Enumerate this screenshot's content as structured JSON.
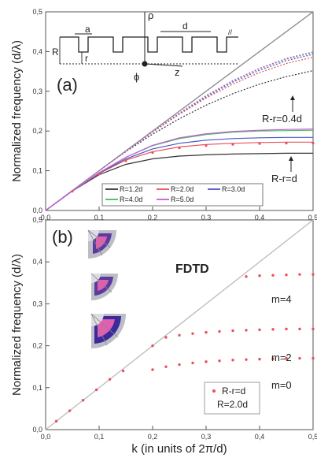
{
  "chart_data": [
    {
      "panel": "(a)",
      "type": "line",
      "ylabel": "Normalized frequency (d/λ)",
      "xlabel": "",
      "xlim": [
        0,
        0.5
      ],
      "ylim": [
        0,
        0.5
      ],
      "xticks": [
        "0,0",
        "0,1",
        "0,2",
        "0,3",
        "0,4",
        "0,5"
      ],
      "yticks": [
        "0,0",
        "0,1",
        "0,2",
        "0,3",
        "0,4",
        "0,5"
      ],
      "legend_position": "bottom-right",
      "annotations": [
        "R-r=0.4d",
        "R-r=d"
      ],
      "inset_labels": {
        "R": "R",
        "a": "a",
        "d": "d",
        "r": "r",
        "rho": "ρ",
        "phi": "ϕ",
        "z": "z"
      },
      "series": [
        {
          "name": "R=1.2d",
          "color": "#333333",
          "x": [
            0,
            0.05,
            0.1,
            0.15,
            0.2,
            0.25,
            0.3,
            0.35,
            0.4,
            0.45,
            0.5
          ],
          "y_group_lower": [
            0,
            0.049,
            0.09,
            0.116,
            0.13,
            0.137,
            0.14,
            0.142,
            0.143,
            0.144,
            0.144
          ],
          "y_group_upper": [
            0,
            0.05,
            0.1,
            0.148,
            0.192,
            0.231,
            0.265,
            0.294,
            0.318,
            0.337,
            0.352
          ]
        },
        {
          "name": "R=2.0d",
          "color": "#e8505a",
          "x": [
            0,
            0.05,
            0.1,
            0.15,
            0.2,
            0.25,
            0.3,
            0.35,
            0.4,
            0.45,
            0.5
          ],
          "y_group_lower": [
            0,
            0.049,
            0.093,
            0.127,
            0.148,
            0.16,
            0.166,
            0.169,
            0.171,
            0.172,
            0.172
          ],
          "y_group_upper": [
            0,
            0.05,
            0.1,
            0.149,
            0.197,
            0.242,
            0.283,
            0.318,
            0.347,
            0.37,
            0.386
          ]
        },
        {
          "name": "R=3.0d",
          "color": "#4a56c8",
          "x": [
            0,
            0.05,
            0.1,
            0.15,
            0.2,
            0.25,
            0.3,
            0.35,
            0.4,
            0.45,
            0.5
          ],
          "y_group_lower": [
            0,
            0.049,
            0.094,
            0.13,
            0.155,
            0.169,
            0.177,
            0.181,
            0.183,
            0.184,
            0.184
          ],
          "y_group_upper": [
            0,
            0.05,
            0.1,
            0.149,
            0.198,
            0.244,
            0.286,
            0.323,
            0.353,
            0.377,
            0.393
          ]
        },
        {
          "name": "R=4.0d",
          "color": "#3fbf5a",
          "x": [
            0,
            0.05,
            0.1,
            0.15,
            0.2,
            0.25,
            0.3,
            0.35,
            0.4,
            0.45,
            0.5
          ],
          "y_group_lower": [
            0,
            0.049,
            0.095,
            0.134,
            0.163,
            0.181,
            0.191,
            0.197,
            0.2,
            0.201,
            0.202
          ],
          "y_group_upper": [
            0,
            0.05,
            0.1,
            0.149,
            0.198,
            0.245,
            0.288,
            0.326,
            0.357,
            0.381,
            0.397
          ]
        },
        {
          "name": "R=5.0d",
          "color": "#c85ad8",
          "x": [
            0,
            0.05,
            0.1,
            0.15,
            0.2,
            0.25,
            0.3,
            0.35,
            0.4,
            0.45,
            0.5
          ],
          "y_group_lower": [
            0,
            0.049,
            0.095,
            0.134,
            0.164,
            0.183,
            0.193,
            0.199,
            0.202,
            0.204,
            0.205
          ],
          "y_group_upper": [
            0,
            0.05,
            0.1,
            0.149,
            0.198,
            0.245,
            0.289,
            0.327,
            0.358,
            0.383,
            0.399
          ]
        }
      ],
      "light_line": {
        "x": [
          0,
          0.5
        ],
        "y": [
          0,
          0.5
        ],
        "color": "#888888"
      }
    },
    {
      "panel": "(b)",
      "type": "scatter",
      "title": "FDTD",
      "xlabel": "k (in units of 2π/d)",
      "ylabel": "Normalized frequency (d/λ)",
      "xlim": [
        0,
        0.5
      ],
      "ylim": [
        0,
        0.5
      ],
      "xticks": [
        "0,0",
        "0,1",
        "0,2",
        "0,3",
        "0,4",
        "0,5"
      ],
      "yticks": [
        "0,0",
        "0,1",
        "0,2",
        "0,3",
        "0,4",
        "0,5"
      ],
      "legend": [
        "R-r=d",
        "R=2.0d"
      ],
      "legend_position": "bottom-right",
      "annotations": [
        "m=4",
        "m=2",
        "m=0"
      ],
      "light_line": {
        "x": [
          0,
          0.5
        ],
        "y": [
          0,
          0.5
        ],
        "color": "#bbbbbb"
      },
      "points": {
        "color": "#e8505a",
        "x": [
          0.02,
          0.045,
          0.07,
          0.095,
          0.12,
          0.145,
          0.2,
          0.2,
          0.225,
          0.25,
          0.275,
          0.3,
          0.325,
          0.35,
          0.375,
          0.4,
          0.425,
          0.45,
          0.475,
          0.5,
          0.225,
          0.25,
          0.275,
          0.3,
          0.325,
          0.35,
          0.375,
          0.4,
          0.425,
          0.45,
          0.475,
          0.5,
          0.375,
          0.4,
          0.425,
          0.45,
          0.475,
          0.5
        ],
        "y": [
          0.02,
          0.045,
          0.07,
          0.095,
          0.12,
          0.14,
          0.2,
          0.143,
          0.15,
          0.155,
          0.159,
          0.162,
          0.164,
          0.166,
          0.167,
          0.168,
          0.169,
          0.17,
          0.17,
          0.17,
          0.22,
          0.225,
          0.229,
          0.232,
          0.234,
          0.236,
          0.237,
          0.238,
          0.239,
          0.24,
          0.24,
          0.24,
          0.365,
          0.367,
          0.368,
          0.369,
          0.37,
          0.37
        ]
      }
    }
  ]
}
